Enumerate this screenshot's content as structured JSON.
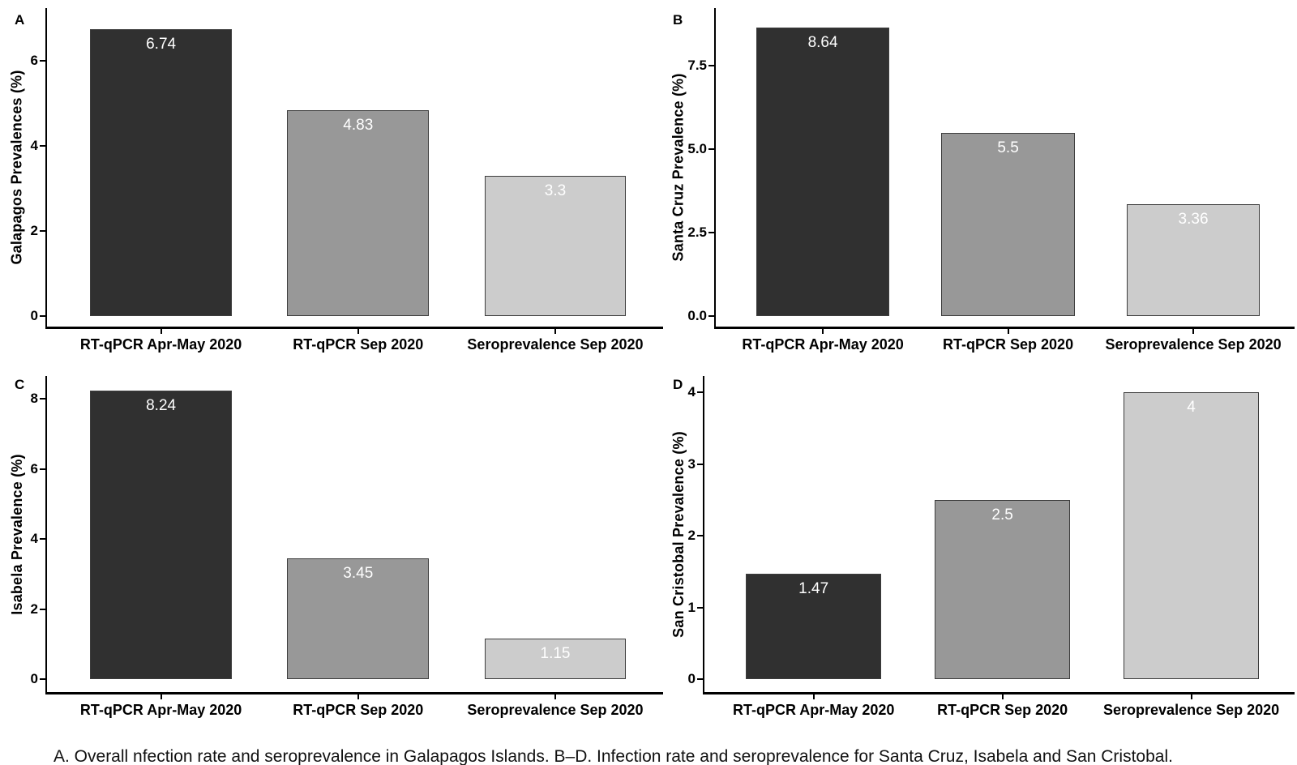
{
  "figure": {
    "caption": "A. Overall nfection rate and seroprevalence in Galapagos Islands. B–D. Infection rate and seroprevalence for Santa Cruz, Isabela and San Cristobal."
  },
  "style": {
    "bar_colors": [
      "#303030",
      "#989898",
      "#cccccc"
    ],
    "bar_border_color": "#3d3d3d",
    "value_label_color": "#ffffff",
    "axis_color": "#000000",
    "background": "#ffffff"
  },
  "chart_data": [
    {
      "type": "bar",
      "panel": "A",
      "title": "",
      "xlabel": "",
      "ylabel": "Galapagos Prevalences (%)",
      "categories": [
        "RT-qPCR Apr-May 2020",
        "RT-qPCR Sep 2020",
        "Seroprevalence Sep 2020"
      ],
      "values": [
        6.74,
        4.83,
        3.3
      ],
      "value_labels": [
        "6.74",
        "4.83",
        "3.3"
      ],
      "yticks": [
        {
          "v": 0,
          "label": "0"
        },
        {
          "v": 2,
          "label": "2"
        },
        {
          "v": 4,
          "label": "4"
        },
        {
          "v": 6,
          "label": "6"
        }
      ],
      "ylim": [
        0,
        7.23
      ],
      "grid": false,
      "legend": false
    },
    {
      "type": "bar",
      "panel": "B",
      "title": "",
      "xlabel": "",
      "ylabel": "Santa Cruz Prevalence (%)",
      "categories": [
        "RT-qPCR Apr-May 2020",
        "RT-qPCR Sep 2020",
        "Seroprevalence Sep 2020"
      ],
      "values": [
        8.64,
        5.5,
        3.36
      ],
      "value_labels": [
        "8.64",
        "5.5",
        "3.36"
      ],
      "yticks": [
        {
          "v": 0,
          "label": "0.0"
        },
        {
          "v": 2.5,
          "label": "2.5"
        },
        {
          "v": 5,
          "label": "5.0"
        },
        {
          "v": 7.5,
          "label": "7.5"
        }
      ],
      "ylim": [
        0,
        9.23
      ],
      "grid": false,
      "legend": false
    },
    {
      "type": "bar",
      "panel": "C",
      "title": "",
      "xlabel": "",
      "ylabel": "Isabela Prevalence (%)",
      "categories": [
        "RT-qPCR Apr-May 2020",
        "RT-qPCR Sep 2020",
        "Seroprevalence Sep 2020"
      ],
      "values": [
        8.24,
        3.45,
        1.15
      ],
      "value_labels": [
        "8.24",
        "3.45",
        "1.15"
      ],
      "yticks": [
        {
          "v": 0,
          "label": "0"
        },
        {
          "v": 2,
          "label": "2"
        },
        {
          "v": 4,
          "label": "4"
        },
        {
          "v": 6,
          "label": "6"
        },
        {
          "v": 8,
          "label": "8"
        }
      ],
      "ylim": [
        0,
        8.65
      ],
      "grid": false,
      "legend": false
    },
    {
      "type": "bar",
      "panel": "D",
      "title": "",
      "xlabel": "",
      "ylabel": "San Cristobal Prevalence (%)",
      "categories": [
        "RT-qPCR Apr-May 2020",
        "RT-qPCR Sep 2020",
        "Seroprevalence Sep 2020"
      ],
      "values": [
        1.47,
        2.5,
        4
      ],
      "value_labels": [
        "1.47",
        "2.5",
        "4"
      ],
      "yticks": [
        {
          "v": 0,
          "label": "0"
        },
        {
          "v": 1,
          "label": "1"
        },
        {
          "v": 2,
          "label": "2"
        },
        {
          "v": 3,
          "label": "3"
        },
        {
          "v": 4,
          "label": "4"
        }
      ],
      "ylim": [
        0,
        4.23
      ],
      "grid": false,
      "legend": false
    }
  ]
}
